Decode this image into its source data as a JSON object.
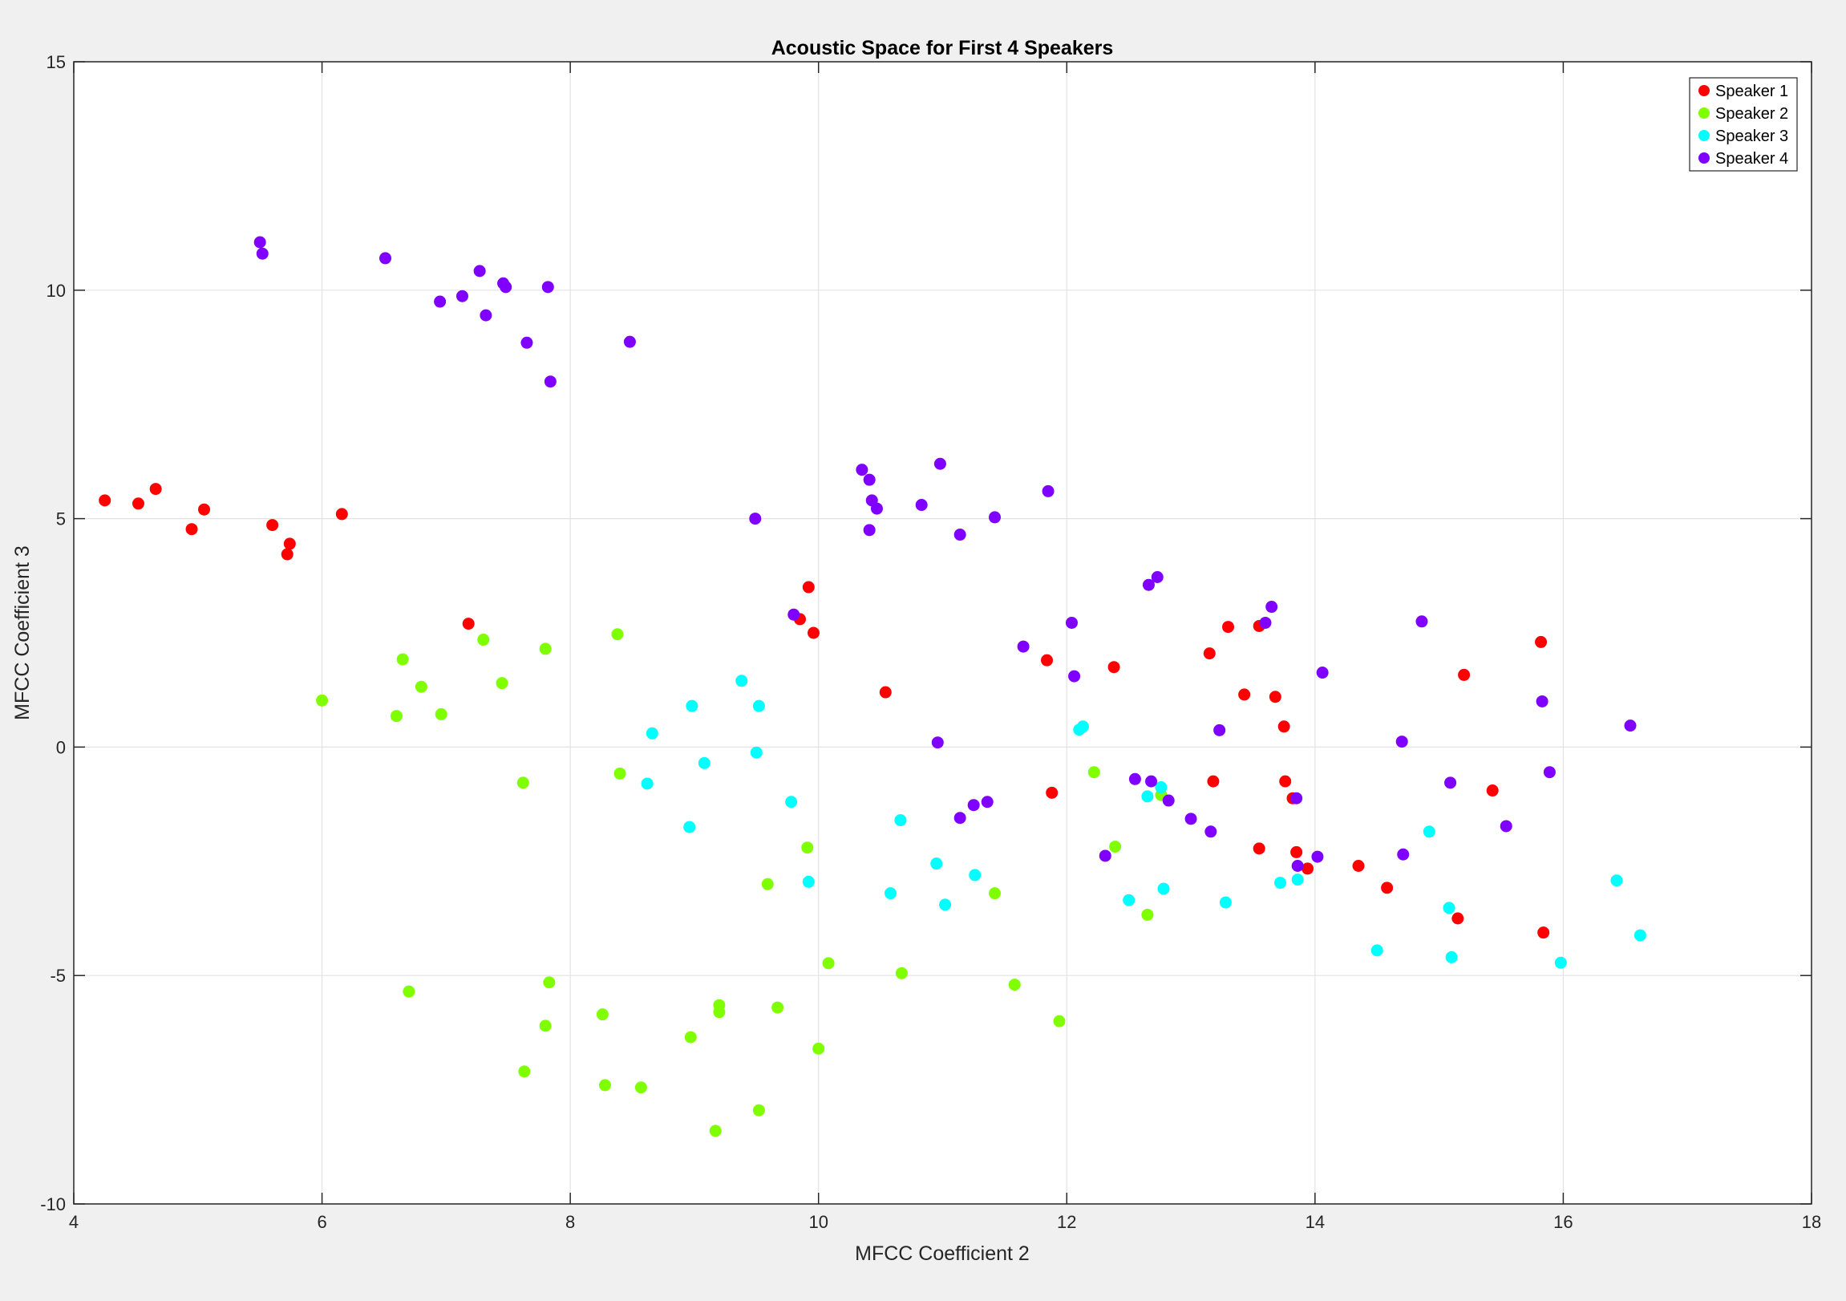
{
  "chart_data": {
    "type": "scatter",
    "title": "Acoustic Space for First 4 Speakers",
    "xlabel": "MFCC Coefficient 2",
    "ylabel": "MFCC Coefficient 3",
    "xlim": [
      4,
      18
    ],
    "ylim": [
      -10,
      15
    ],
    "xticks": [
      "4",
      "6",
      "8",
      "10",
      "12",
      "14",
      "16",
      "18"
    ],
    "yticks": [
      "-10",
      "-5",
      "0",
      "5",
      "10",
      "15"
    ],
    "grid": true,
    "legend_position": "top-right",
    "series": [
      {
        "name": "Speaker 1",
        "color": "#ff0000",
        "points": [
          [
            4.25,
            5.4
          ],
          [
            4.52,
            5.33
          ],
          [
            4.66,
            5.65
          ],
          [
            4.95,
            4.77
          ],
          [
            5.05,
            5.2
          ],
          [
            5.6,
            4.86
          ],
          [
            5.74,
            4.45
          ],
          [
            5.72,
            4.22
          ],
          [
            6.16,
            5.1
          ],
          [
            7.18,
            2.7
          ],
          [
            9.85,
            2.8
          ],
          [
            9.92,
            3.5
          ],
          [
            9.96,
            2.5
          ],
          [
            10.54,
            1.2
          ],
          [
            11.84,
            1.9
          ],
          [
            11.88,
            -1.0
          ],
          [
            12.38,
            1.75
          ],
          [
            13.15,
            2.05
          ],
          [
            13.3,
            2.63
          ],
          [
            13.55,
            2.65
          ],
          [
            13.43,
            1.15
          ],
          [
            13.68,
            1.1
          ],
          [
            13.75,
            0.45
          ],
          [
            13.76,
            -0.75
          ],
          [
            13.18,
            -0.75
          ],
          [
            13.55,
            -2.22
          ],
          [
            13.82,
            -1.12
          ],
          [
            13.85,
            -2.3
          ],
          [
            13.94,
            -2.66
          ],
          [
            14.35,
            -2.6
          ],
          [
            14.58,
            -3.08
          ],
          [
            15.15,
            -3.75
          ],
          [
            15.2,
            1.58
          ],
          [
            15.43,
            -0.95
          ],
          [
            15.82,
            2.3
          ],
          [
            15.84,
            -4.06
          ]
        ]
      },
      {
        "name": "Speaker 2",
        "color": "#80ff00",
        "points": [
          [
            6.0,
            1.02
          ],
          [
            6.6,
            0.68
          ],
          [
            6.65,
            1.92
          ],
          [
            6.8,
            1.32
          ],
          [
            6.96,
            0.72
          ],
          [
            7.3,
            2.35
          ],
          [
            7.45,
            1.4
          ],
          [
            7.8,
            2.15
          ],
          [
            7.62,
            -0.78
          ],
          [
            8.38,
            2.47
          ],
          [
            8.4,
            -0.58
          ],
          [
            6.7,
            -5.35
          ],
          [
            7.83,
            -5.15
          ],
          [
            7.8,
            -6.1
          ],
          [
            7.63,
            -7.1
          ],
          [
            8.26,
            -5.85
          ],
          [
            8.28,
            -7.4
          ],
          [
            8.57,
            -7.45
          ],
          [
            8.97,
            -6.35
          ],
          [
            9.2,
            -5.65
          ],
          [
            9.2,
            -5.8
          ],
          [
            9.17,
            -8.4
          ],
          [
            9.52,
            -7.95
          ],
          [
            9.59,
            -3.0
          ],
          [
            9.67,
            -5.7
          ],
          [
            9.91,
            -2.2
          ],
          [
            10.0,
            -6.6
          ],
          [
            10.08,
            -4.73
          ],
          [
            10.67,
            -4.95
          ],
          [
            11.42,
            -3.2
          ],
          [
            11.58,
            -5.2
          ],
          [
            11.94,
            -6.0
          ],
          [
            12.22,
            -0.55
          ],
          [
            12.39,
            -2.18
          ],
          [
            12.65,
            -3.67
          ],
          [
            12.76,
            -1.05
          ]
        ]
      },
      {
        "name": "Speaker 3",
        "color": "#00ffff",
        "points": [
          [
            8.66,
            0.3
          ],
          [
            8.62,
            -0.8
          ],
          [
            8.98,
            0.9
          ],
          [
            8.96,
            -1.75
          ],
          [
            9.08,
            -0.35
          ],
          [
            9.38,
            1.45
          ],
          [
            9.5,
            -0.12
          ],
          [
            9.52,
            0.9
          ],
          [
            9.78,
            -1.2
          ],
          [
            9.92,
            -2.95
          ],
          [
            10.66,
            -1.6
          ],
          [
            10.58,
            -3.2
          ],
          [
            10.95,
            -2.55
          ],
          [
            11.02,
            -3.45
          ],
          [
            11.26,
            -2.8
          ],
          [
            12.1,
            0.38
          ],
          [
            12.13,
            0.45
          ],
          [
            12.5,
            -3.35
          ],
          [
            12.65,
            -1.08
          ],
          [
            12.76,
            -0.88
          ],
          [
            12.78,
            -3.1
          ],
          [
            13.28,
            -3.4
          ],
          [
            13.72,
            -2.97
          ],
          [
            13.86,
            -2.9
          ],
          [
            14.5,
            -4.45
          ],
          [
            14.92,
            -1.85
          ],
          [
            15.08,
            -3.52
          ],
          [
            15.1,
            -4.6
          ],
          [
            15.98,
            -4.72
          ],
          [
            16.43,
            -2.92
          ],
          [
            16.62,
            -4.12
          ]
        ]
      },
      {
        "name": "Speaker 4",
        "color": "#8000ff",
        "points": [
          [
            5.5,
            11.05
          ],
          [
            5.52,
            10.8
          ],
          [
            6.51,
            10.7
          ],
          [
            6.95,
            9.75
          ],
          [
            7.13,
            9.87
          ],
          [
            7.27,
            10.42
          ],
          [
            7.32,
            9.45
          ],
          [
            7.46,
            10.15
          ],
          [
            7.48,
            10.07
          ],
          [
            7.65,
            8.85
          ],
          [
            7.82,
            10.07
          ],
          [
            7.84,
            8.0
          ],
          [
            8.48,
            8.87
          ],
          [
            9.49,
            5.0
          ],
          [
            9.8,
            2.9
          ],
          [
            10.35,
            6.07
          ],
          [
            10.41,
            5.85
          ],
          [
            10.43,
            5.4
          ],
          [
            10.47,
            5.22
          ],
          [
            10.41,
            4.75
          ],
          [
            10.83,
            5.3
          ],
          [
            10.98,
            6.2
          ],
          [
            11.14,
            4.65
          ],
          [
            11.42,
            5.03
          ],
          [
            11.85,
            5.6
          ],
          [
            11.65,
            2.2
          ],
          [
            12.04,
            2.72
          ],
          [
            12.06,
            1.55
          ],
          [
            10.96,
            0.1
          ],
          [
            11.14,
            -1.55
          ],
          [
            11.25,
            -1.27
          ],
          [
            11.36,
            -1.2
          ],
          [
            12.31,
            -2.38
          ],
          [
            12.55,
            -0.7
          ],
          [
            12.68,
            -0.75
          ],
          [
            12.66,
            3.55
          ],
          [
            12.73,
            3.72
          ],
          [
            12.82,
            -1.17
          ],
          [
            13.0,
            -1.57
          ],
          [
            13.16,
            -1.85
          ],
          [
            13.23,
            0.37
          ],
          [
            13.6,
            2.72
          ],
          [
            13.65,
            3.07
          ],
          [
            13.85,
            -1.12
          ],
          [
            13.86,
            -2.6
          ],
          [
            14.02,
            -2.4
          ],
          [
            14.06,
            1.63
          ],
          [
            14.7,
            0.12
          ],
          [
            14.71,
            -2.35
          ],
          [
            14.86,
            2.75
          ],
          [
            15.09,
            -0.78
          ],
          [
            15.54,
            -1.73
          ],
          [
            15.83,
            1.0
          ],
          [
            15.89,
            -0.55
          ],
          [
            16.54,
            0.47
          ]
        ]
      }
    ]
  }
}
